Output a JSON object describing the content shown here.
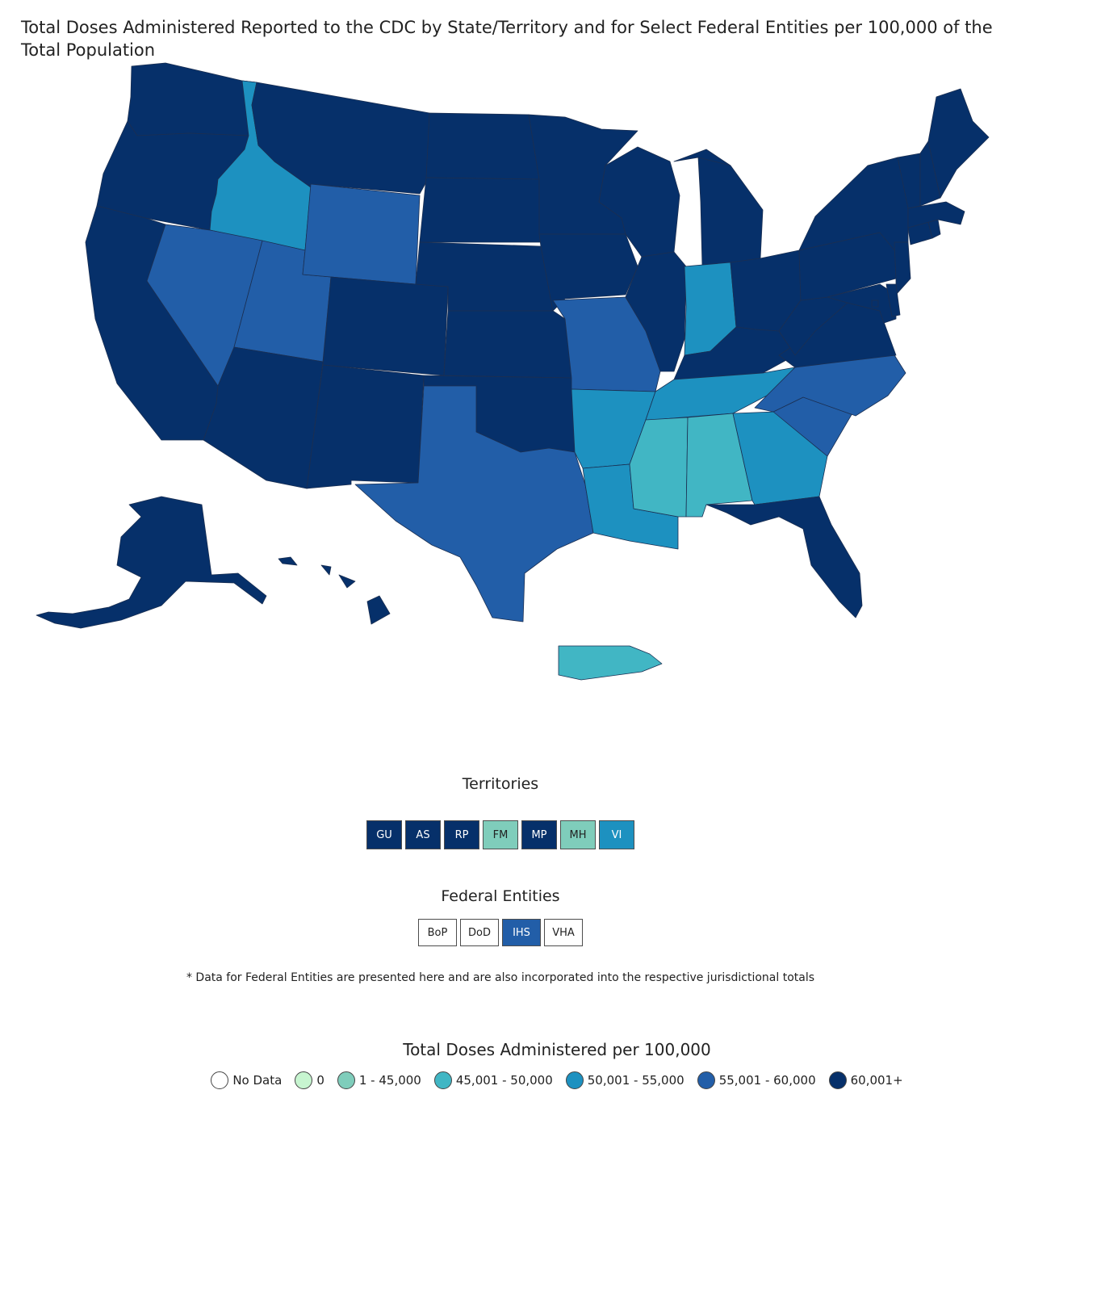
{
  "title": "Total Doses Administered Reported to the CDC by State/Territory and for Select Federal Entities per 100,000 of the Total Population",
  "colors": {
    "no_data": "#ffffff",
    "zero": "#c7f5d0",
    "c1": "#7fcdbb",
    "c2": "#41b6c4",
    "c3": "#1d91c0",
    "c4": "#225ea8",
    "c5": "#06306a"
  },
  "states": [
    {
      "id": "WA",
      "name": "Washington",
      "cls": "c5"
    },
    {
      "id": "OR",
      "name": "Oregon",
      "cls": "c5"
    },
    {
      "id": "CA",
      "name": "California",
      "cls": "c5"
    },
    {
      "id": "ID",
      "name": "Idaho",
      "cls": "c3"
    },
    {
      "id": "NV",
      "name": "Nevada",
      "cls": "c4"
    },
    {
      "id": "UT",
      "name": "Utah",
      "cls": "c4"
    },
    {
      "id": "AZ",
      "name": "Arizona",
      "cls": "c5"
    },
    {
      "id": "MT",
      "name": "Montana",
      "cls": "c5"
    },
    {
      "id": "WY",
      "name": "Wyoming",
      "cls": "c4"
    },
    {
      "id": "CO",
      "name": "Colorado",
      "cls": "c5"
    },
    {
      "id": "NM",
      "name": "New Mexico",
      "cls": "c5"
    },
    {
      "id": "ND",
      "name": "North Dakota",
      "cls": "c5"
    },
    {
      "id": "SD",
      "name": "South Dakota",
      "cls": "c5"
    },
    {
      "id": "NE",
      "name": "Nebraska",
      "cls": "c5"
    },
    {
      "id": "KS",
      "name": "Kansas",
      "cls": "c5"
    },
    {
      "id": "OK",
      "name": "Oklahoma",
      "cls": "c5"
    },
    {
      "id": "TX",
      "name": "Texas",
      "cls": "c4"
    },
    {
      "id": "MN",
      "name": "Minnesota",
      "cls": "c5"
    },
    {
      "id": "IA",
      "name": "Iowa",
      "cls": "c5"
    },
    {
      "id": "MO",
      "name": "Missouri",
      "cls": "c4"
    },
    {
      "id": "AR",
      "name": "Arkansas",
      "cls": "c3"
    },
    {
      "id": "LA",
      "name": "Louisiana",
      "cls": "c3"
    },
    {
      "id": "WI",
      "name": "Wisconsin",
      "cls": "c5"
    },
    {
      "id": "IL",
      "name": "Illinois",
      "cls": "c5"
    },
    {
      "id": "MI",
      "name": "Michigan",
      "cls": "c5"
    },
    {
      "id": "IN",
      "name": "Indiana",
      "cls": "c3"
    },
    {
      "id": "OH",
      "name": "Ohio",
      "cls": "c5"
    },
    {
      "id": "KY",
      "name": "Kentucky",
      "cls": "c5"
    },
    {
      "id": "TN",
      "name": "Tennessee",
      "cls": "c3"
    },
    {
      "id": "MS",
      "name": "Mississippi",
      "cls": "c2"
    },
    {
      "id": "AL",
      "name": "Alabama",
      "cls": "c2"
    },
    {
      "id": "GA",
      "name": "Georgia",
      "cls": "c3"
    },
    {
      "id": "FL",
      "name": "Florida",
      "cls": "c5"
    },
    {
      "id": "SC",
      "name": "South Carolina",
      "cls": "c4"
    },
    {
      "id": "NC",
      "name": "North Carolina",
      "cls": "c4"
    },
    {
      "id": "VA",
      "name": "Virginia",
      "cls": "c5"
    },
    {
      "id": "WV",
      "name": "West Virginia",
      "cls": "c5"
    },
    {
      "id": "PA",
      "name": "Pennsylvania",
      "cls": "c5"
    },
    {
      "id": "NY",
      "name": "New York",
      "cls": "c5"
    },
    {
      "id": "NJ",
      "name": "New Jersey",
      "cls": "c5"
    },
    {
      "id": "MD",
      "name": "Maryland",
      "cls": "c5"
    },
    {
      "id": "DE",
      "name": "Delaware",
      "cls": "c5"
    },
    {
      "id": "CT",
      "name": "Connecticut",
      "cls": "c5"
    },
    {
      "id": "RI",
      "name": "Rhode Island",
      "cls": "c5"
    },
    {
      "id": "MA",
      "name": "Massachusetts",
      "cls": "c5"
    },
    {
      "id": "VT",
      "name": "Vermont",
      "cls": "c5"
    },
    {
      "id": "NH",
      "name": "New Hampshire",
      "cls": "c5"
    },
    {
      "id": "ME",
      "name": "Maine",
      "cls": "c5"
    },
    {
      "id": "DC",
      "name": "District of Columbia",
      "cls": "c5"
    },
    {
      "id": "AK",
      "name": "Alaska",
      "cls": "c5"
    },
    {
      "id": "HI",
      "name": "Hawaii",
      "cls": "c5"
    },
    {
      "id": "PR",
      "name": "Puerto Rico",
      "cls": "c2"
    }
  ],
  "territories": {
    "title": "Territories",
    "items": [
      {
        "label": "GU",
        "cls": "c5"
      },
      {
        "label": "AS",
        "cls": "c5"
      },
      {
        "label": "RP",
        "cls": "c5"
      },
      {
        "label": "FM",
        "cls": "c1"
      },
      {
        "label": "MP",
        "cls": "c5"
      },
      {
        "label": "MH",
        "cls": "c1"
      },
      {
        "label": "VI",
        "cls": "c3"
      }
    ]
  },
  "federal": {
    "title": "Federal Entities",
    "items": [
      {
        "label": "BoP",
        "cls": "no_data"
      },
      {
        "label": "DoD",
        "cls": "no_data"
      },
      {
        "label": "IHS",
        "cls": "c4"
      },
      {
        "label": "VHA",
        "cls": "no_data"
      }
    ]
  },
  "note": "* Data for Federal Entities are presented here and are also incorporated into the respective jurisdictional totals",
  "legend": {
    "title": "Total Doses Administered per 100,000",
    "items": [
      {
        "label": "No Data",
        "cls": "no_data"
      },
      {
        "label": "0",
        "cls": "zero"
      },
      {
        "label": "1 - 45,000",
        "cls": "c1"
      },
      {
        "label": "45,001 - 50,000",
        "cls": "c2"
      },
      {
        "label": "50,001 - 55,000",
        "cls": "c3"
      },
      {
        "label": "55,001 - 60,000",
        "cls": "c4"
      },
      {
        "label": "60,001+",
        "cls": "c5"
      }
    ]
  }
}
